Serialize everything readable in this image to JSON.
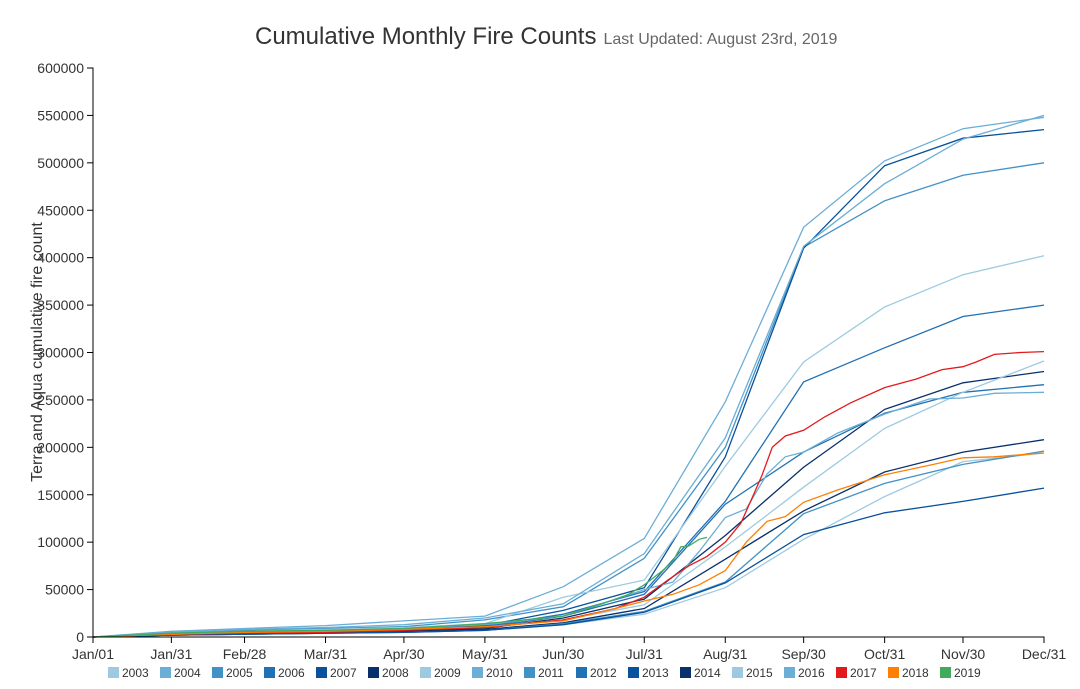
{
  "chart_data": {
    "type": "line",
    "title": "Cumulative Monthly Fire Counts",
    "subtitle": "Last Updated: August 23rd, 2019",
    "xlabel": "",
    "ylabel": "Terra and Aqua cumulative fire count",
    "ylim": [
      0,
      600000
    ],
    "y_ticks": [
      0,
      50000,
      100000,
      150000,
      200000,
      250000,
      300000,
      350000,
      400000,
      450000,
      500000,
      550000,
      600000
    ],
    "y_tick_labels": [
      "0",
      "50000",
      "100000",
      "150000",
      "200000",
      "250000",
      "300000",
      "350000",
      "400000",
      "450000",
      "500000",
      "550000",
      "600000"
    ],
    "x_day_range": [
      0,
      364
    ],
    "x_ticks": [
      0,
      30,
      58,
      89,
      119,
      150,
      180,
      211,
      242,
      272,
      303,
      333,
      364
    ],
    "x_tick_labels": [
      "Jan/01",
      "Jan/31",
      "Feb/28",
      "Mar/31",
      "Apr/30",
      "May/31",
      "Jun/30",
      "Jul/31",
      "Aug/31",
      "Sep/30",
      "Oct/31",
      "Nov/30",
      "Dec/31"
    ],
    "grid": false,
    "legend_position": "bottom",
    "monthly_days": [
      0,
      30,
      58,
      89,
      119,
      150,
      180,
      211,
      242,
      272,
      303,
      333,
      364
    ],
    "series": [
      {
        "name": "2003",
        "color": "#9ecae1",
        "x": [
          0,
          30,
          58,
          89,
          119,
          150,
          180,
          211,
          242,
          272,
          303,
          333,
          364
        ],
        "values": [
          0,
          2000,
          3000,
          4000,
          5000,
          7000,
          13000,
          24000,
          52000,
          103000,
          148000,
          185000,
          194000
        ]
      },
      {
        "name": "2004",
        "color": "#6baed6",
        "x": [
          0,
          30,
          58,
          89,
          119,
          150,
          180,
          211,
          242,
          272,
          303,
          333,
          364
        ],
        "values": [
          0,
          6000,
          9000,
          12000,
          17000,
          22000,
          53000,
          104000,
          248000,
          432000,
          502000,
          536000,
          548000
        ]
      },
      {
        "name": "2005",
        "color": "#4292c6",
        "x": [
          0,
          30,
          58,
          89,
          119,
          150,
          180,
          211,
          242,
          272,
          303,
          333,
          364
        ],
        "values": [
          0,
          5000,
          7000,
          9000,
          11000,
          18000,
          32000,
          83000,
          200000,
          411000,
          460000,
          487000,
          500000
        ]
      },
      {
        "name": "2006",
        "color": "#2171b5",
        "x": [
          0,
          30,
          58,
          89,
          119,
          150,
          180,
          211,
          242,
          272,
          303,
          333,
          364
        ],
        "values": [
          0,
          3000,
          5000,
          6000,
          8000,
          11000,
          24000,
          48000,
          143000,
          269000,
          305000,
          338000,
          350000
        ]
      },
      {
        "name": "2007",
        "color": "#08519c",
        "x": [
          0,
          30,
          58,
          89,
          119,
          150,
          180,
          211,
          242,
          272,
          303,
          333,
          364
        ],
        "values": [
          0,
          4000,
          6000,
          7000,
          9000,
          12000,
          28000,
          52000,
          190000,
          410000,
          497000,
          526000,
          535000
        ]
      },
      {
        "name": "2008",
        "color": "#08306b",
        "x": [
          0,
          30,
          58,
          89,
          119,
          150,
          180,
          211,
          242,
          272,
          303,
          333,
          364
        ],
        "values": [
          0,
          2000,
          3000,
          4000,
          6000,
          8000,
          15000,
          30000,
          82000,
          133000,
          174000,
          195000,
          208000
        ]
      },
      {
        "name": "2009",
        "color": "#9ecae1",
        "x": [
          0,
          30,
          58,
          89,
          119,
          150,
          180,
          211,
          242,
          272,
          303,
          333,
          364
        ],
        "values": [
          0,
          4000,
          6000,
          8000,
          10000,
          14000,
          42000,
          60000,
          180000,
          290000,
          348000,
          382000,
          402000
        ]
      },
      {
        "name": "2010",
        "color": "#6baed6",
        "x": [
          0,
          30,
          58,
          89,
          119,
          150,
          180,
          211,
          242,
          272,
          303,
          333,
          364
        ],
        "values": [
          0,
          5000,
          8000,
          10000,
          13000,
          20000,
          35000,
          88000,
          210000,
          412000,
          478000,
          525000,
          550000
        ]
      },
      {
        "name": "2011",
        "color": "#4292c6",
        "x": [
          0,
          30,
          58,
          89,
          119,
          150,
          180,
          211,
          242,
          272,
          303,
          333,
          364
        ],
        "values": [
          0,
          2000,
          3000,
          4000,
          5000,
          7000,
          14000,
          27000,
          58000,
          130000,
          162000,
          182000,
          196000
        ]
      },
      {
        "name": "2012",
        "color": "#2171b5",
        "x": [
          0,
          30,
          58,
          89,
          119,
          150,
          180,
          211,
          242,
          272,
          303,
          333,
          364
        ],
        "values": [
          0,
          3000,
          5000,
          6000,
          8000,
          10000,
          22000,
          45000,
          140000,
          195000,
          236000,
          258000,
          266000
        ]
      },
      {
        "name": "2013",
        "color": "#08519c",
        "x": [
          0,
          30,
          58,
          89,
          119,
          150,
          180,
          211,
          242,
          272,
          303,
          333,
          364
        ],
        "values": [
          0,
          2000,
          3000,
          4000,
          5000,
          7000,
          13000,
          26000,
          57000,
          108000,
          131000,
          143000,
          157000
        ]
      },
      {
        "name": "2014",
        "color": "#08306b",
        "x": [
          0,
          30,
          58,
          89,
          119,
          150,
          180,
          211,
          242,
          272,
          303,
          333,
          364
        ],
        "values": [
          0,
          3000,
          4000,
          5000,
          7000,
          9000,
          20000,
          40000,
          107000,
          179000,
          240000,
          268000,
          280000
        ]
      },
      {
        "name": "2015",
        "color": "#9ecae1",
        "x": [
          0,
          30,
          58,
          89,
          119,
          150,
          180,
          211,
          242,
          272,
          303,
          333,
          364
        ],
        "values": [
          0,
          3000,
          5000,
          6000,
          8000,
          10000,
          18000,
          34000,
          95000,
          158000,
          220000,
          258000,
          291000
        ]
      },
      {
        "name": "2016",
        "color": "#6baed6",
        "x": [
          0,
          30,
          58,
          89,
          119,
          150,
          180,
          200,
          211,
          222,
          232,
          242,
          250,
          258,
          265,
          272,
          285,
          303,
          320,
          333,
          345,
          364
        ],
        "values": [
          0,
          4000,
          6000,
          7000,
          9000,
          13000,
          22000,
          40000,
          50000,
          58000,
          90000,
          126000,
          135000,
          172000,
          190000,
          195000,
          215000,
          235000,
          251000,
          252000,
          257000,
          258000
        ]
      },
      {
        "name": "2017",
        "color": "#e31a1c",
        "x": [
          0,
          30,
          58,
          89,
          119,
          150,
          180,
          200,
          211,
          220,
          228,
          235,
          242,
          248,
          252,
          256,
          260,
          265,
          272,
          280,
          290,
          303,
          315,
          325,
          333,
          338,
          345,
          355,
          364
        ],
        "values": [
          0,
          3000,
          4000,
          5000,
          7000,
          10000,
          18000,
          30000,
          42000,
          60000,
          75000,
          85000,
          100000,
          120000,
          145000,
          170000,
          200000,
          212000,
          218000,
          232000,
          247000,
          263000,
          272000,
          282000,
          285000,
          290000,
          298000,
          300000,
          301000
        ]
      },
      {
        "name": "2018",
        "color": "#ff7f00",
        "x": [
          0,
          30,
          58,
          89,
          119,
          150,
          180,
          200,
          211,
          222,
          232,
          242,
          250,
          258,
          265,
          272,
          285,
          303,
          320,
          333,
          345,
          364
        ],
        "values": [
          0,
          3000,
          5000,
          6000,
          8000,
          11000,
          17000,
          30000,
          38000,
          45000,
          55000,
          70000,
          100000,
          122000,
          127000,
          142000,
          155000,
          171000,
          181000,
          189000,
          190000,
          194000
        ]
      },
      {
        "name": "2019",
        "color": "#41ab5d",
        "x": [
          0,
          30,
          58,
          89,
          119,
          150,
          180,
          195,
          205,
          211,
          218,
          222,
          225,
          228,
          232,
          235
        ],
        "values": [
          0,
          4000,
          6000,
          7000,
          9000,
          14000,
          22000,
          35000,
          45000,
          55000,
          70000,
          80000,
          95000,
          96000,
          103000,
          105000
        ]
      }
    ]
  }
}
